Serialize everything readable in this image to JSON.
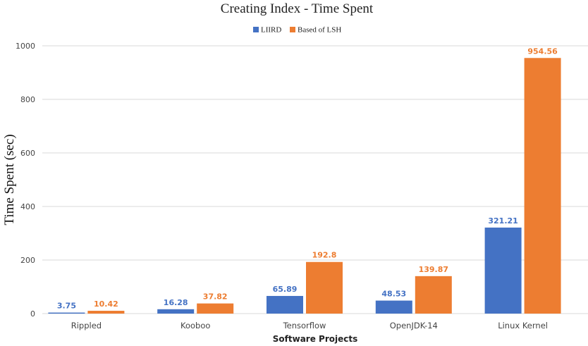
{
  "chart_data": {
    "type": "bar",
    "title": "Creating Index - Time Spent",
    "xlabel": "Software Projects",
    "ylabel": "Time Spent (sec)",
    "categories": [
      "Rippled",
      "Kooboo",
      "Tensorflow",
      "OpenJDK-14",
      "Linux Kernel"
    ],
    "series": [
      {
        "name": "LIIRD",
        "color": "#4472c4",
        "values": [
          3.75,
          16.28,
          65.89,
          48.53,
          321.21
        ],
        "labels": [
          "3.75",
          "16.28",
          "65.89",
          "48.53",
          "321.21"
        ]
      },
      {
        "name": "Based of LSH",
        "color": "#ed7d31",
        "values": [
          10.42,
          37.82,
          192.8,
          139.87,
          954.56
        ],
        "labels": [
          "10.42",
          "37.82",
          "192.8",
          "139.87",
          "954.56"
        ]
      }
    ],
    "ylim": [
      0,
      1000
    ],
    "yticks": [
      0,
      200,
      400,
      600,
      800,
      1000
    ],
    "grid": true,
    "legend_position": "top"
  }
}
